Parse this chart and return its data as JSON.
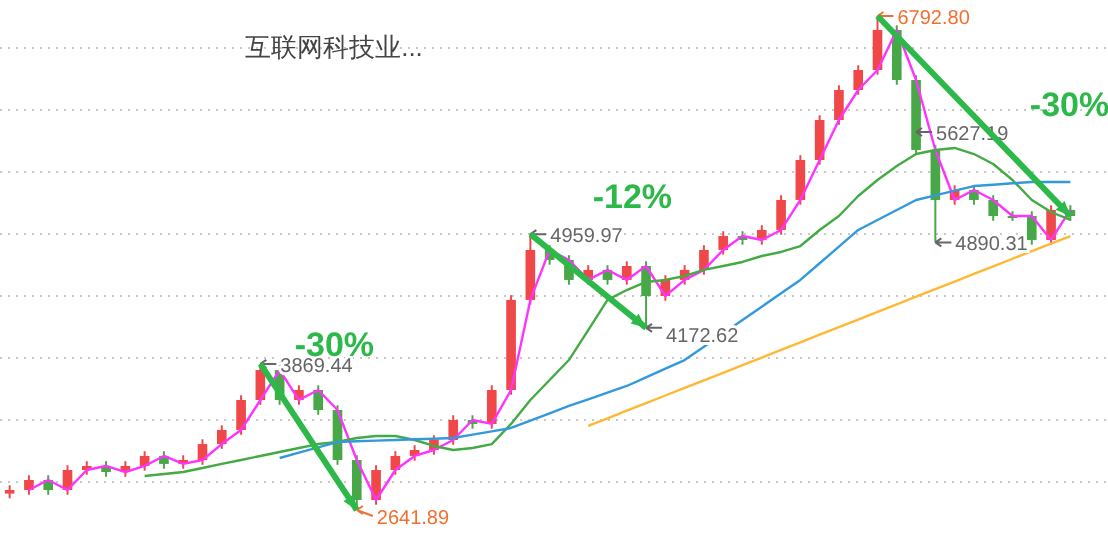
{
  "chart_data": {
    "type": "candlestick",
    "title": "互联网科技业...",
    "categories": [
      null,
      null,
      null,
      null,
      null,
      null,
      null,
      null,
      null,
      null,
      null,
      null,
      null,
      null,
      null,
      null,
      null,
      null,
      null,
      null,
      null,
      null,
      null,
      null,
      null,
      null,
      null,
      null,
      null,
      null,
      null,
      null,
      null,
      null,
      null,
      null,
      null,
      null,
      null,
      null,
      null,
      null,
      null,
      null,
      null,
      null,
      null,
      null,
      null,
      null,
      null,
      null,
      null,
      null,
      null,
      null
    ],
    "ohlc": [
      [
        2780,
        2850,
        2740,
        2810
      ],
      [
        2810,
        2934,
        2770,
        2894
      ],
      [
        2894,
        2934,
        2770,
        2810
      ],
      [
        2810,
        3018,
        2770,
        2978
      ],
      [
        2978,
        3052,
        2938,
        3012
      ],
      [
        3012,
        3052,
        2921,
        2961
      ],
      [
        2961,
        3052,
        2921,
        3012
      ],
      [
        3012,
        3136,
        2972,
        3096
      ],
      [
        3096,
        3136,
        2989,
        3029
      ],
      [
        3029,
        3102,
        2989,
        3062
      ],
      [
        3062,
        3236,
        3022,
        3196
      ],
      [
        3196,
        3354,
        3156,
        3314
      ],
      [
        3314,
        3606,
        3274,
        3566
      ],
      [
        3566,
        3869.44,
        3526,
        3818
      ],
      [
        3818,
        3858,
        3526,
        3566
      ],
      [
        3566,
        3690,
        3526,
        3650
      ],
      [
        3650,
        3690,
        3442,
        3482
      ],
      [
        3482,
        3522,
        3022,
        3062
      ],
      [
        3062,
        3102,
        2641.89,
        2726
      ],
      [
        2726,
        3018,
        2686,
        2978
      ],
      [
        2978,
        3136,
        2938,
        3096
      ],
      [
        3096,
        3186,
        3056,
        3146
      ],
      [
        3146,
        3270,
        3106,
        3230
      ],
      [
        3230,
        3438,
        3190,
        3398
      ],
      [
        3398,
        3438,
        3325,
        3365
      ],
      [
        3365,
        3690,
        3325,
        3650
      ],
      [
        3650,
        4447,
        3610,
        4407
      ],
      [
        4407,
        4959.97,
        4367,
        4827
      ],
      [
        4827,
        4867,
        4703,
        4743
      ],
      [
        4743,
        4783,
        4535,
        4575
      ],
      [
        4575,
        4699,
        4535,
        4659
      ],
      [
        4659,
        4699,
        4535,
        4575
      ],
      [
        4575,
        4732,
        4535,
        4692
      ],
      [
        4692,
        4732,
        4172.62,
        4440
      ],
      [
        4440,
        4615,
        4400,
        4575
      ],
      [
        4575,
        4699,
        4535,
        4659
      ],
      [
        4659,
        4867,
        4619,
        4827
      ],
      [
        4827,
        4984,
        4787,
        4944
      ],
      [
        4944,
        4984,
        4871,
        4911
      ],
      [
        4911,
        5035,
        4871,
        4995
      ],
      [
        4995,
        5287,
        4955,
        5247
      ],
      [
        5247,
        5623,
        5207,
        5583
      ],
      [
        5583,
        5959,
        5543,
        5919
      ],
      [
        5919,
        6211,
        5879,
        6171
      ],
      [
        6171,
        6379,
        6131,
        6339
      ],
      [
        6339,
        6792.8,
        6299,
        6675
      ],
      [
        6675,
        6715,
        6215,
        6255
      ],
      [
        6255,
        6295,
        5627,
        5667
      ],
      [
        5667,
        5707,
        4890.31,
        5247
      ],
      [
        5247,
        5371,
        5207,
        5331
      ],
      [
        5331,
        5371,
        5207,
        5247
      ],
      [
        5247,
        5287,
        5072,
        5112
      ],
      [
        5112,
        5152,
        5072,
        5112
      ],
      [
        5112,
        5152,
        4871,
        4911
      ],
      [
        4911,
        5203,
        4871,
        5163
      ],
      [
        5163,
        5203,
        5072,
        5112
      ]
    ],
    "colors": [
      "#f04848",
      "#f04848",
      "#48a848",
      "#f04848",
      "#f04848",
      "#48a848",
      "#f04848",
      "#f04848",
      "#48a848",
      "#f04848",
      "#f04848",
      "#f04848",
      "#f04848",
      "#f04848",
      "#48a848",
      "#f04848",
      "#48a848",
      "#48a848",
      "#48a848",
      "#f04848",
      "#f04848",
      "#f04848",
      "#f04848",
      "#f04848",
      "#48a848",
      "#f04848",
      "#f04848",
      "#f04848",
      "#48a848",
      "#48a848",
      "#f04848",
      "#48a848",
      "#f04848",
      "#48a848",
      "#f04848",
      "#f04848",
      "#f04848",
      "#f04848",
      "#48a848",
      "#f04848",
      "#f04848",
      "#f04848",
      "#f04848",
      "#f04848",
      "#f04848",
      "#f04848",
      "#48a848",
      "#48a848",
      "#48a848",
      "#f04848",
      "#48a848",
      "#48a848",
      "#48a848",
      "#48a848",
      "#f04848",
      "#48a848"
    ],
    "series": [
      {
        "type": "line",
        "color": "#ff33ff",
        "values": [
          null,
          2810,
          2894,
          2810,
          2978,
          3012,
          2961,
          3012,
          3096,
          3029,
          3062,
          3196,
          3314,
          3566,
          3818,
          3566,
          3650,
          3482,
          3062,
          2726,
          2978,
          3096,
          3146,
          3230,
          3398,
          3365,
          3650,
          4407,
          4827,
          4743,
          4575,
          4659,
          4575,
          4692,
          4440,
          4575,
          4659,
          4827,
          4944,
          4911,
          4995,
          5247,
          5583,
          5919,
          6171,
          6339,
          6675,
          6255,
          5667,
          5247,
          5331,
          5247,
          5112,
          5112,
          4911,
          5163
        ]
      },
      {
        "type": "line",
        "color": "#44aa44",
        "values": [
          null,
          null,
          null,
          null,
          null,
          null,
          null,
          2928,
          2944,
          2961,
          2995,
          3029,
          3062,
          3096,
          3129,
          3163,
          3196,
          3213,
          3247,
          3264,
          3264,
          3230,
          3180,
          3146,
          3163,
          3196,
          3365,
          3566,
          3734,
          3902,
          4154,
          4407,
          4490,
          4558,
          4575,
          4608,
          4659,
          4692,
          4726,
          4776,
          4810,
          4860,
          4995,
          5112,
          5280,
          5415,
          5532,
          5633,
          5667,
          5684,
          5633,
          5549,
          5415,
          5247,
          5146,
          5079
        ]
      },
      {
        "type": "line",
        "color": "#3399dd",
        "values": [
          null,
          null,
          null,
          null,
          null,
          null,
          null,
          null,
          null,
          null,
          null,
          null,
          null,
          null,
          3079,
          3124,
          3168,
          3213,
          3219,
          3225,
          3230,
          3236,
          3241,
          3247,
          3275,
          3303,
          3331,
          3393,
          3454,
          3516,
          3572,
          3628,
          3684,
          3757,
          3830,
          3902,
          4014,
          4126,
          4238,
          4350,
          4463,
          4575,
          4715,
          4855,
          4995,
          5079,
          5163,
          5247,
          5286,
          5325,
          5364,
          5375,
          5387,
          5398,
          5398,
          5398
        ]
      },
      {
        "type": "line",
        "color": "#ffb833",
        "values": [
          null,
          null,
          null,
          null,
          null,
          null,
          null,
          null,
          null,
          null,
          null,
          null,
          null,
          null,
          null,
          null,
          null,
          null,
          null,
          null,
          null,
          null,
          null,
          null,
          null,
          null,
          null,
          null,
          null,
          null,
          3348,
          3412,
          3476,
          3540,
          3604,
          3668,
          3731,
          3795,
          3859,
          3923,
          3987,
          4051,
          4115,
          4178,
          4242,
          4306,
          4370,
          4434,
          4498,
          4561,
          4625,
          4689,
          4753,
          4817,
          4881,
          4944
        ]
      }
    ],
    "yticks": [
      {
        "value": 2877,
        "label": null
      },
      {
        "value": 3398,
        "label": null
      },
      {
        "value": 3919,
        "label": null
      },
      {
        "value": 4440,
        "label": null
      },
      {
        "value": 4961,
        "label": null
      },
      {
        "value": 5482,
        "label": null
      },
      {
        "value": 6003,
        "label": null
      },
      {
        "value": 6524,
        "label": null
      }
    ],
    "grid": "y",
    "annotations": [
      "-30%",
      "3869.44",
      "2641.89",
      "-12%",
      "4959.97",
      "4172.62",
      "-30%",
      "6792.80",
      "5627.19",
      "4890.31"
    ]
  }
}
